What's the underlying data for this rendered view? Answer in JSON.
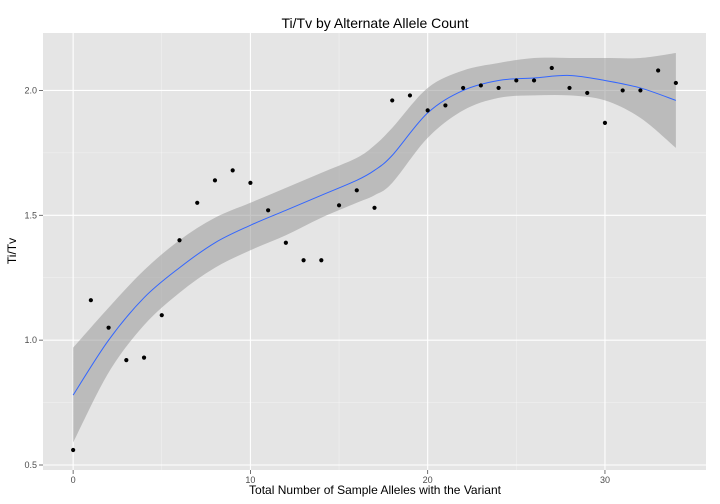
{
  "chart_data": {
    "type": "scatter",
    "title": "Ti/Tv by Alternate Allele Count",
    "xlabel": "Total Number of Sample Alleles with the Variant",
    "ylabel": "Ti/Tv",
    "xlim": [
      -1.7,
      35.7
    ],
    "ylim": [
      0.48,
      2.23
    ],
    "x_ticks": [
      0,
      10,
      20,
      30
    ],
    "x_tick_labels": [
      "0",
      "10",
      "20",
      "30"
    ],
    "y_ticks": [
      0.5,
      1.0,
      1.5,
      2.0
    ],
    "y_tick_labels": [
      "0.5",
      "1.0",
      "1.5",
      "2.0"
    ],
    "grid": true,
    "colors": {
      "panel": "#e5e5e5",
      "grid": "#ffffff",
      "points": "#000000",
      "smooth_line": "#3366ff",
      "ribbon": "#999999"
    },
    "points": {
      "x": [
        0,
        1,
        2,
        3,
        4,
        5,
        6,
        7,
        8,
        9,
        10,
        11,
        12,
        13,
        14,
        15,
        16,
        17,
        18,
        19,
        20,
        21,
        22,
        23,
        24,
        25,
        26,
        27,
        28,
        29,
        30,
        31,
        32,
        33,
        34
      ],
      "y": [
        0.56,
        1.16,
        1.05,
        0.92,
        0.93,
        1.1,
        1.4,
        1.55,
        1.64,
        1.68,
        1.63,
        1.52,
        1.39,
        1.32,
        1.32,
        1.54,
        1.6,
        1.53,
        1.96,
        1.98,
        1.92,
        1.94,
        2.01,
        2.02,
        2.01,
        2.04,
        2.04,
        2.09,
        2.01,
        1.99,
        1.87,
        2.0,
        2.0,
        2.08,
        2.03
      ]
    },
    "smooth": {
      "x": [
        0,
        2,
        4,
        6,
        8,
        10,
        12,
        14,
        16,
        17,
        18,
        20,
        22,
        24,
        26,
        28,
        30,
        32,
        34
      ],
      "y": [
        0.78,
        1.0,
        1.17,
        1.29,
        1.39,
        1.46,
        1.52,
        1.58,
        1.64,
        1.68,
        1.74,
        1.91,
        2.0,
        2.04,
        2.05,
        2.06,
        2.04,
        2.01,
        1.96
      ],
      "lower": [
        0.59,
        0.87,
        1.06,
        1.19,
        1.29,
        1.36,
        1.42,
        1.49,
        1.55,
        1.58,
        1.63,
        1.81,
        1.92,
        1.97,
        1.98,
        1.98,
        1.96,
        1.89,
        1.77
      ],
      "upper": [
        0.97,
        1.13,
        1.28,
        1.4,
        1.49,
        1.55,
        1.61,
        1.67,
        1.73,
        1.78,
        1.85,
        2.01,
        2.08,
        2.11,
        2.13,
        2.13,
        2.13,
        2.13,
        2.15
      ]
    }
  }
}
